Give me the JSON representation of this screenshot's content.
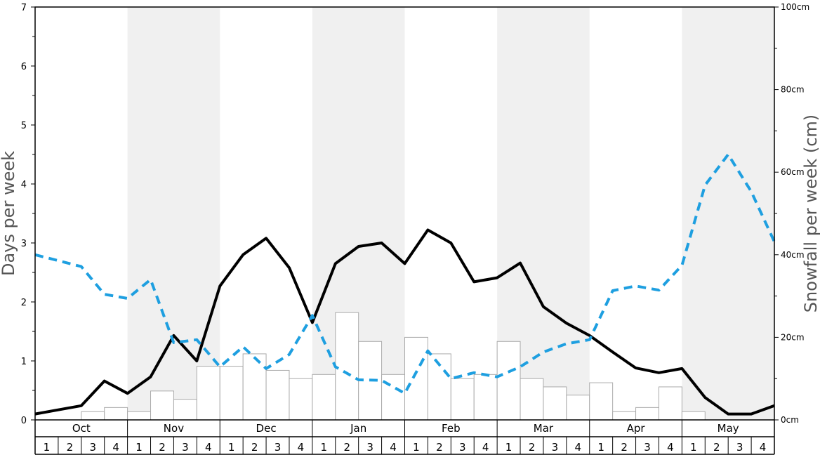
{
  "chart_data": {
    "type": "bar",
    "title": "",
    "ylabel": "Days per week",
    "y2label": "Snowfall per week (cm)",
    "ylim": [
      0,
      7
    ],
    "y2lim": [
      0,
      100
    ],
    "y_ticks": [
      "0",
      "1",
      "2",
      "3",
      "4",
      "5",
      "6",
      "7"
    ],
    "y2_ticks": [
      "0cm",
      "20cm",
      "40cm",
      "60cm",
      "80cm",
      "100cm"
    ],
    "grid": false,
    "months": [
      "Oct",
      "Nov",
      "Dec",
      "Jan",
      "Feb",
      "Mar",
      "Apr",
      "May"
    ],
    "weeks": [
      "1",
      "2",
      "3",
      "4"
    ],
    "colors": {
      "solid_line": "#000000",
      "dashed_line": "#1e9fe0",
      "shade": "#f0f0f0",
      "bar_fill": "#ffffff",
      "bar_stroke": "#aaaaaa"
    },
    "series": [
      {
        "type": "bar",
        "axis": "right",
        "values": [
          0,
          0,
          2,
          3,
          2,
          7,
          5,
          13,
          13,
          16,
          12,
          10,
          11,
          26,
          19,
          11,
          20,
          16,
          10,
          11,
          19,
          10,
          8,
          6,
          9,
          2,
          3,
          8,
          2,
          0,
          0,
          0
        ]
      },
      {
        "type": "line",
        "style": "solid",
        "axis": "left",
        "values": [
          0.1,
          0.17,
          0.24,
          0.66,
          0.45,
          0.73,
          1.43,
          1.0,
          2.27,
          2.8,
          3.08,
          2.58,
          1.65,
          2.65,
          2.94,
          3.0,
          2.65,
          3.22,
          3.0,
          2.34,
          2.41,
          2.66,
          1.92,
          1.64,
          1.43,
          1.15,
          0.88,
          0.8,
          0.87,
          0.38,
          0.1,
          0.1,
          0.24
        ]
      },
      {
        "type": "line",
        "style": "dashed",
        "axis": "left",
        "values": [
          2.8,
          2.7,
          2.6,
          2.13,
          2.06,
          2.38,
          1.31,
          1.36,
          0.9,
          1.24,
          0.87,
          1.11,
          1.77,
          0.9,
          0.68,
          0.67,
          0.45,
          1.17,
          0.7,
          0.8,
          0.73,
          0.9,
          1.15,
          1.29,
          1.36,
          2.19,
          2.27,
          2.2,
          2.62,
          3.98,
          4.5,
          3.87,
          3.02
        ]
      }
    ]
  }
}
